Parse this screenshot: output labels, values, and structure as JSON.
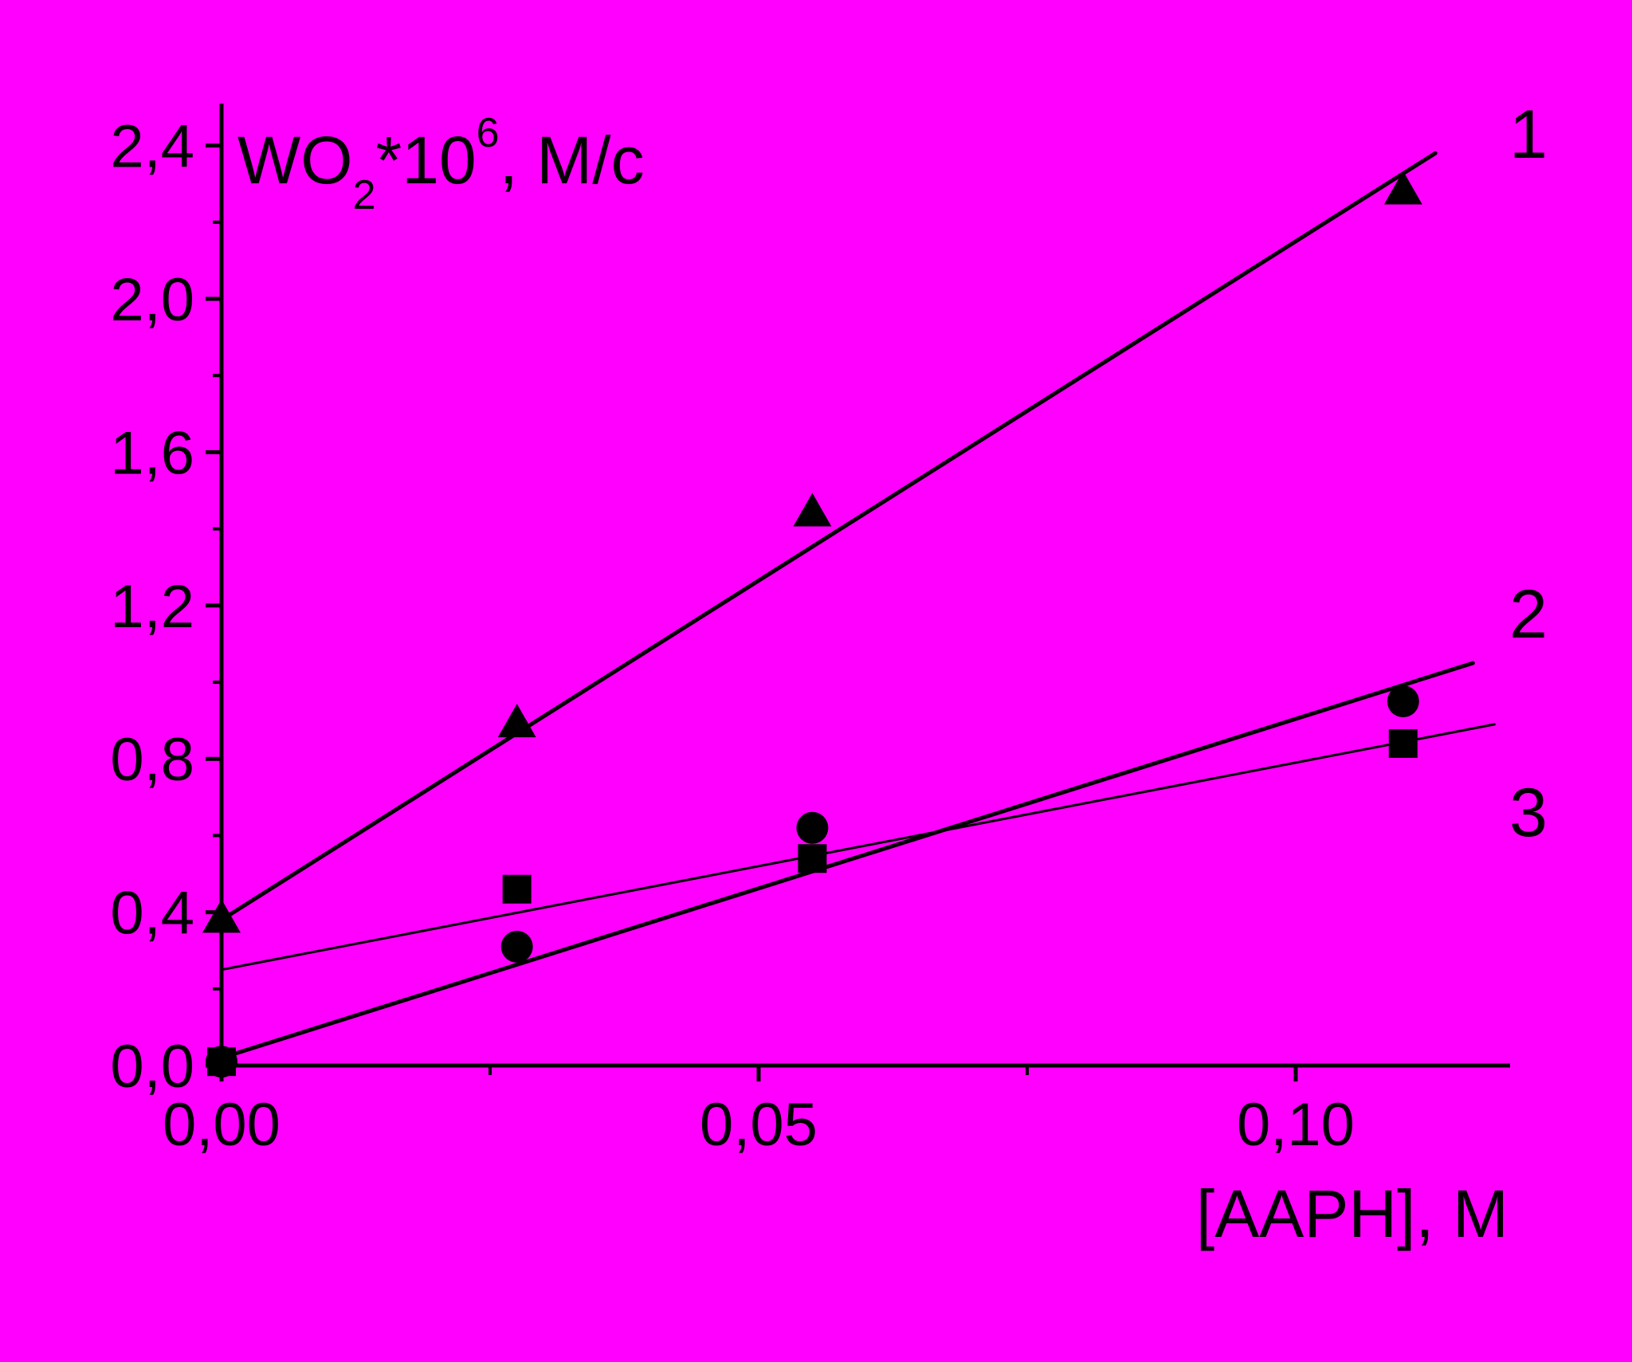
{
  "colors": {
    "background": "#ff00ff",
    "frame": "#000000",
    "ink": "#000000"
  },
  "chart_data": {
    "type": "scatter",
    "title": "",
    "xlabel": "[AAPH], M",
    "ylabel": {
      "main": "WO",
      "sub": "2",
      "mid": "*10",
      "sup": "6",
      "tail": ", M/c"
    },
    "xlim": [
      0,
      0.12
    ],
    "ylim": [
      0,
      2.5
    ],
    "x_ticks": [
      {
        "value": 0,
        "label": "0,00"
      },
      {
        "value": 0.05,
        "label": "0,05"
      },
      {
        "value": 0.1,
        "label": "0,10"
      }
    ],
    "x_minor_ticks": [
      0.025,
      0.075
    ],
    "y_ticks": [
      {
        "value": 0,
        "label": "0,0"
      },
      {
        "value": 0.4,
        "label": "0,4"
      },
      {
        "value": 0.8,
        "label": "0,8"
      },
      {
        "value": 1.2,
        "label": "1,2"
      },
      {
        "value": 1.6,
        "label": "1,6"
      },
      {
        "value": 2.0,
        "label": "2,0"
      },
      {
        "value": 2.4,
        "label": "2,4"
      }
    ],
    "y_minor_ticks": [
      0.2,
      0.6,
      1.0,
      1.4,
      1.8,
      2.2
    ],
    "grid": false,
    "legend": "none",
    "series": [
      {
        "label": "1",
        "marker": "triangle",
        "x": [
          0,
          0.0275,
          0.055,
          0.11
        ],
        "y": [
          0.39,
          0.9,
          1.45,
          2.29
        ],
        "fit": {
          "x0": 0,
          "y0": 0.38,
          "x1": 0.113,
          "y1": 2.38
        },
        "line_width": "thick"
      },
      {
        "label": "2",
        "marker": "circle",
        "x": [
          0,
          0.0275,
          0.055,
          0.11
        ],
        "y": [
          0.01,
          0.31,
          0.62,
          0.95
        ],
        "fit": {
          "x0": 0,
          "y0": 0.02,
          "x1": 0.1165,
          "y1": 1.05
        },
        "line_width": "thick"
      },
      {
        "label": "3",
        "marker": "square",
        "x": [
          0,
          0.0275,
          0.055,
          0.11
        ],
        "y": [
          0.01,
          0.46,
          0.54,
          0.84
        ],
        "fit": {
          "x0": 0,
          "y0": 0.25,
          "x1": 0.1185,
          "y1": 0.89
        },
        "line_width": "thin"
      }
    ]
  }
}
